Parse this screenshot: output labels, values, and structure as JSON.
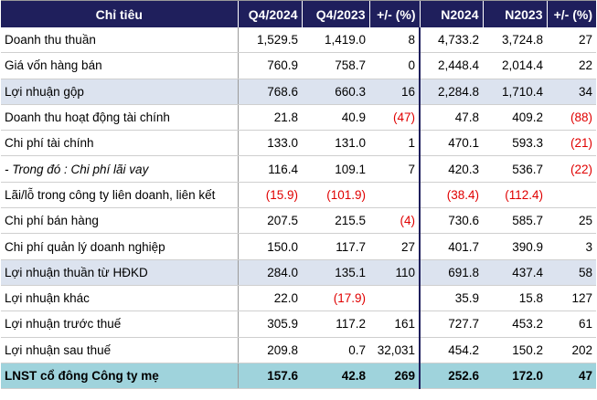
{
  "header": {
    "col_item": "Chỉ tiêu",
    "col_q4_2024": "Q4/2024",
    "col_q4_2023": "Q4/2023",
    "col_q_change": "+/- (%)",
    "col_n2024": "N2024",
    "col_n2023": "N2023",
    "col_n_change": "+/- (%)"
  },
  "rows": [
    {
      "label": "Doanh thu thuần",
      "q4_2024": "1,529.5",
      "q4_2023": "1,419.0",
      "q_change": "8",
      "n2024": "4,733.2",
      "n2023": "3,724.8",
      "n_change": "27"
    },
    {
      "label": "Giá vốn hàng bán",
      "q4_2024": "760.9",
      "q4_2023": "758.7",
      "q_change": "0",
      "n2024": "2,448.4",
      "n2023": "2,014.4",
      "n_change": "22"
    },
    {
      "label": "Lợi nhuận gộp",
      "q4_2024": "768.6",
      "q4_2023": "660.3",
      "q_change": "16",
      "n2024": "2,284.8",
      "n2023": "1,710.4",
      "n_change": "34"
    },
    {
      "label": "Doanh thu hoạt động tài chính",
      "q4_2024": "21.8",
      "q4_2023": "40.9",
      "q_change": "(47)",
      "n2024": "47.8",
      "n2023": "409.2",
      "n_change": "(88)"
    },
    {
      "label": "Chi phí tài chính",
      "q4_2024": "133.0",
      "q4_2023": "131.0",
      "q_change": "1",
      "n2024": "470.1",
      "n2023": "593.3",
      "n_change": "(21)"
    },
    {
      "label": "- Trong đó : Chi phí lãi vay",
      "q4_2024": "116.4",
      "q4_2023": "109.1",
      "q_change": "7",
      "n2024": "420.3",
      "n2023": "536.7",
      "n_change": "(22)"
    },
    {
      "label": "Lãi/lỗ trong công ty liên doanh, liên kết",
      "q4_2024": "(15.9)",
      "q4_2023": "(101.9)",
      "q_change": "",
      "n2024": "(38.4)",
      "n2023": "(112.4)",
      "n_change": ""
    },
    {
      "label": "Chi phí bán hàng",
      "q4_2024": "207.5",
      "q4_2023": "215.5",
      "q_change": "(4)",
      "n2024": "730.6",
      "n2023": "585.7",
      "n_change": "25"
    },
    {
      "label": "Chi phí quản lý doanh nghiệp",
      "q4_2024": "150.0",
      "q4_2023": "117.7",
      "q_change": "27",
      "n2024": "401.7",
      "n2023": "390.9",
      "n_change": "3"
    },
    {
      "label": "Lợi nhuận thuần từ HĐKD",
      "q4_2024": "284.0",
      "q4_2023": "135.1",
      "q_change": "110",
      "n2024": "691.8",
      "n2023": "437.4",
      "n_change": "58"
    },
    {
      "label": "Lợi nhuận khác",
      "q4_2024": "22.0",
      "q4_2023": "(17.9)",
      "q_change": "",
      "n2024": "35.9",
      "n2023": "15.8",
      "n_change": "127"
    },
    {
      "label": "Lợi nhuận trước thuế",
      "q4_2024": "305.9",
      "q4_2023": "117.2",
      "q_change": "161",
      "n2024": "727.7",
      "n2023": "453.2",
      "n_change": "61"
    },
    {
      "label": "Lợi nhuận sau thuế",
      "q4_2024": "209.8",
      "q4_2023": "0.7",
      "q_change": "32,031",
      "n2024": "454.2",
      "n2023": "150.2",
      "n_change": "202"
    },
    {
      "label": "LNST cổ đông Công ty mẹ",
      "q4_2024": "157.6",
      "q4_2023": "42.8",
      "q_change": "269",
      "n2024": "252.6",
      "n2023": "172.0",
      "n_change": "47"
    }
  ],
  "colors": {
    "header_bg": "#1f1f5c",
    "highlight_row_bg": "#dce3ef",
    "total_row_bg": "#9fd3dc",
    "negative_text": "#e00000"
  }
}
